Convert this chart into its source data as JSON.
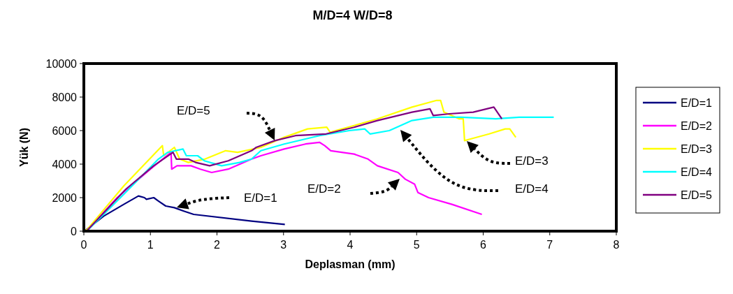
{
  "chart_data": {
    "type": "line",
    "title": "M/D=4 W/D=8",
    "xlabel": "Deplasman (mm)",
    "ylabel": "Yük (N)",
    "xlim": [
      0,
      8
    ],
    "xticks": [
      0,
      1,
      2,
      3,
      4,
      5,
      6,
      7,
      8
    ],
    "ylim": [
      0,
      10000
    ],
    "yticks": [
      0,
      2000,
      4000,
      6000,
      8000,
      10000
    ],
    "grid": false,
    "legend": "right",
    "marker": "none",
    "line_style": "solid",
    "series": [
      {
        "name": "E/D=1",
        "color": "#000080",
        "x": [
          0,
          0.02,
          0.3,
          0.6,
          0.82,
          0.91,
          0.94,
          1.05,
          1.12,
          1.23,
          1.36,
          1.5,
          1.65,
          2.52,
          3.02
        ],
        "values": [
          0,
          40,
          900,
          1600,
          2100,
          2000,
          1900,
          2000,
          1800,
          1500,
          1400,
          1200,
          1000,
          600,
          400
        ]
      },
      {
        "name": "E/D=2",
        "color": "#ff00ff",
        "x": [
          0,
          0.05,
          0.5,
          1.0,
          1.31,
          1.32,
          1.4,
          1.61,
          1.75,
          1.92,
          2.17,
          2.52,
          2.66,
          3.01,
          3.33,
          3.54,
          3.62,
          3.71,
          4.06,
          4.27,
          4.41,
          4.72,
          4.83,
          4.97,
          5.02,
          5.18,
          5.53,
          5.98
        ],
        "values": [
          0,
          50,
          2000,
          3700,
          4700,
          3700,
          3900,
          3900,
          3700,
          3500,
          3700,
          4300,
          4500,
          4900,
          5200,
          5300,
          5100,
          4800,
          4600,
          4300,
          3900,
          3500,
          3100,
          2800,
          2300,
          2000,
          1600,
          1000
        ]
      },
      {
        "name": "E/D=3",
        "color": "#ffff00",
        "x": [
          0,
          0.05,
          0.6,
          1.18,
          1.2,
          1.36,
          1.44,
          1.57,
          1.82,
          2.13,
          2.31,
          2.66,
          3.01,
          3.36,
          3.65,
          3.7,
          4.06,
          4.41,
          4.93,
          5.3,
          5.36,
          5.41,
          5.64,
          5.7,
          5.72,
          5.81,
          6.09,
          6.33,
          6.4,
          6.49
        ],
        "values": [
          0,
          100,
          2700,
          5100,
          4500,
          5000,
          4300,
          4100,
          4300,
          4800,
          4700,
          5000,
          5600,
          6100,
          6200,
          5900,
          6300,
          6700,
          7400,
          7800,
          7800,
          7100,
          6700,
          6700,
          5400,
          5500,
          5800,
          6100,
          6100,
          5600
        ]
      },
      {
        "name": "E/D=4",
        "color": "#00ffff",
        "x": [
          0,
          0.05,
          0.6,
          1.12,
          1.26,
          1.49,
          1.54,
          1.71,
          1.81,
          2.07,
          2.34,
          2.52,
          2.66,
          3.01,
          3.54,
          3.99,
          4.22,
          4.3,
          4.59,
          4.93,
          5.25,
          5.67,
          6.19,
          6.54,
          7.06
        ],
        "values": [
          0,
          20,
          2200,
          4300,
          4700,
          4900,
          4500,
          4500,
          4200,
          3900,
          4100,
          4300,
          4800,
          5200,
          5700,
          6000,
          6100,
          5800,
          6000,
          6600,
          6800,
          6800,
          6700,
          6800,
          6800
        ]
      },
      {
        "name": "E/D=5",
        "color": "#800080",
        "x": [
          0,
          0.05,
          0.63,
          1.05,
          1.34,
          1.39,
          1.57,
          1.68,
          1.89,
          2.17,
          2.52,
          2.59,
          2.87,
          3.18,
          3.64,
          4.06,
          4.41,
          4.93,
          5.2,
          5.25,
          5.49,
          5.85,
          6.16,
          6.28
        ],
        "values": [
          0,
          40,
          2500,
          3900,
          4700,
          4300,
          4300,
          4100,
          3900,
          4200,
          4800,
          5000,
          5400,
          5700,
          5800,
          6200,
          6600,
          7100,
          7300,
          6900,
          7000,
          7100,
          7400,
          6700
        ]
      }
    ],
    "annotations": [
      "E/D=1",
      "E/D=2",
      "E/D=3",
      "E/D=4",
      "E/D=5"
    ]
  }
}
